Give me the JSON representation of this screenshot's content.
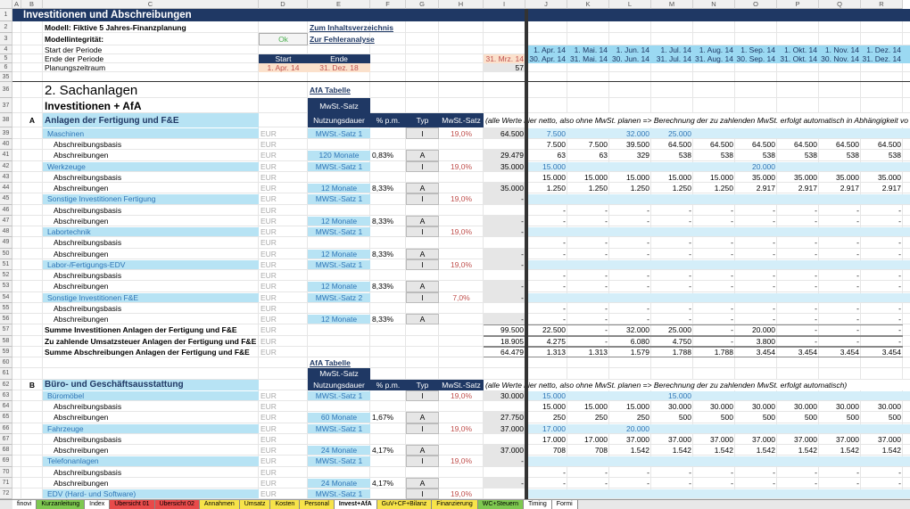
{
  "column_headers": [
    "A",
    "B",
    "C",
    "D",
    "E",
    "F",
    "G",
    "H",
    "I",
    "J",
    "K",
    "L",
    "M",
    "N",
    "O",
    "P",
    "Q",
    "R"
  ],
  "rows": [
    {
      "n": "1",
      "B": "Investitionen und Abschreibungen"
    },
    {
      "n": "2",
      "C": "Modell: Fiktive 5 Jahres-Finanzplanung",
      "E": "Zum Inhaltsverzeichnis"
    },
    {
      "n": "3",
      "C": "Modellintegrität:",
      "D": "Ok",
      "E": "Zur Fehleranalyse"
    },
    {
      "n": "4",
      "C": "Start der Periode",
      "J": "1. Apr. 14",
      "K": "1. Mai. 14",
      "L": "1. Jun. 14",
      "M": "1. Jul. 14",
      "N": "1. Aug. 14",
      "O": "1. Sep. 14",
      "P": "1. Okt. 14",
      "Q": "1. Nov. 14",
      "R": "1. Dez. 14"
    },
    {
      "n": "5",
      "C": "Ende der Periode",
      "D": "Start",
      "E": "Ende",
      "I": "31. Mrz. 14",
      "J": "30. Apr. 14",
      "K": "31. Mai. 14",
      "L": "30. Jun. 14",
      "M": "31. Jul. 14",
      "N": "31. Aug. 14",
      "O": "30. Sep. 14",
      "P": "31. Okt. 14",
      "Q": "30. Nov. 14",
      "R": "31. Dez. 14"
    },
    {
      "n": "6",
      "C": "Planungszeitraum",
      "D": "1. Apr. 14",
      "E": "31. Dez. 18",
      "I": "57"
    },
    {
      "n": "35"
    },
    {
      "n": "36",
      "C": "2. Sachanlagen",
      "E": "AfA Tabelle"
    },
    {
      "n": "37",
      "C": "Investitionen + AfA",
      "E": "MwSt.-Satz"
    },
    {
      "n": "38",
      "B": "A",
      "C": "Anlagen der Fertigung und F&E",
      "E": "Nutzungsdauer",
      "F": "% p.m.",
      "G": "Typ",
      "H": "MwSt.-Satz",
      "I": "(alle Werte hier netto, also ohne MwSt. planen => Berechnung der zu zahlenden MwSt. erfolgt automatisch in Abhängigkeit vo"
    },
    {
      "n": "39",
      "C": "Maschinen",
      "D": "EUR",
      "E": "MWSt.-Satz 1",
      "G": "I",
      "H": "19,0%",
      "I": "64.500",
      "J": "7.500",
      "L": "32.000",
      "M": "25.000"
    },
    {
      "n": "40",
      "C": "Abschreibungsbasis",
      "D": "EUR",
      "J": "7.500",
      "K": "7.500",
      "L": "39.500",
      "M": "64.500",
      "N": "64.500",
      "O": "64.500",
      "P": "64.500",
      "Q": "64.500",
      "R": "64.500"
    },
    {
      "n": "41",
      "C": "Abschreibungen",
      "D": "EUR",
      "E": "120 Monate",
      "F": "0,83%",
      "G": "A",
      "I": "29.479",
      "J": "63",
      "K": "63",
      "L": "329",
      "M": "538",
      "N": "538",
      "O": "538",
      "P": "538",
      "Q": "538",
      "R": "538"
    },
    {
      "n": "42",
      "C": "Werkzeuge",
      "D": "EUR",
      "E": "MWSt.-Satz 1",
      "G": "I",
      "H": "19,0%",
      "I": "35.000",
      "J": "15.000",
      "O": "20.000"
    },
    {
      "n": "43",
      "C": "Abschreibungsbasis",
      "D": "EUR",
      "J": "15.000",
      "K": "15.000",
      "L": "15.000",
      "M": "15.000",
      "N": "15.000",
      "O": "35.000",
      "P": "35.000",
      "Q": "35.000",
      "R": "35.000"
    },
    {
      "n": "44",
      "C": "Abschreibungen",
      "D": "EUR",
      "E": "12 Monate",
      "F": "8,33%",
      "G": "A",
      "I": "35.000",
      "J": "1.250",
      "K": "1.250",
      "L": "1.250",
      "M": "1.250",
      "N": "1.250",
      "O": "2.917",
      "P": "2.917",
      "Q": "2.917",
      "R": "2.917"
    },
    {
      "n": "45",
      "C": "Sonstige Investitionen Fertigung",
      "D": "EUR",
      "E": "MWSt.-Satz 1",
      "G": "I",
      "H": "19,0%",
      "I": "-"
    },
    {
      "n": "46",
      "C": "Abschreibungsbasis",
      "D": "EUR",
      "J": "-",
      "K": "-",
      "L": "-",
      "M": "-",
      "N": "-",
      "O": "-",
      "P": "-",
      "Q": "-",
      "R": "-"
    },
    {
      "n": "47",
      "C": "Abschreibungen",
      "D": "EUR",
      "E": "12 Monate",
      "F": "8,33%",
      "G": "A",
      "I": "-",
      "J": "-",
      "K": "-",
      "L": "-",
      "M": "-",
      "N": "-",
      "O": "-",
      "P": "-",
      "Q": "-",
      "R": "-"
    },
    {
      "n": "48",
      "C": "Labortechnik",
      "D": "EUR",
      "E": "MWSt.-Satz 1",
      "G": "I",
      "H": "19,0%",
      "I": "-"
    },
    {
      "n": "49",
      "C": "Abschreibungsbasis",
      "D": "EUR",
      "J": "-",
      "K": "-",
      "L": "-",
      "M": "-",
      "N": "-",
      "O": "-",
      "P": "-",
      "Q": "-",
      "R": "-"
    },
    {
      "n": "50",
      "C": "Abschreibungen",
      "D": "EUR",
      "E": "12 Monate",
      "F": "8,33%",
      "G": "A",
      "I": "-",
      "J": "-",
      "K": "-",
      "L": "-",
      "M": "-",
      "N": "-",
      "O": "-",
      "P": "-",
      "Q": "-",
      "R": "-"
    },
    {
      "n": "51",
      "C": "Labor-/Fertigungs-EDV",
      "D": "EUR",
      "E": "MWSt.-Satz 1",
      "G": "I",
      "H": "19,0%",
      "I": "-"
    },
    {
      "n": "52",
      "C": "Abschreibungsbasis",
      "D": "EUR",
      "J": "-",
      "K": "-",
      "L": "-",
      "M": "-",
      "N": "-",
      "O": "-",
      "P": "-",
      "Q": "-",
      "R": "-"
    },
    {
      "n": "53",
      "C": "Abschreibungen",
      "D": "EUR",
      "E": "12 Monate",
      "F": "8,33%",
      "G": "A",
      "I": "-",
      "J": "-",
      "K": "-",
      "L": "-",
      "M": "-",
      "N": "-",
      "O": "-",
      "P": "-",
      "Q": "-",
      "R": "-"
    },
    {
      "n": "54",
      "C": "Sonstige Investitionen F&E",
      "D": "EUR",
      "E": "MWSt.-Satz 2",
      "G": "I",
      "H": "7,0%",
      "I": "-"
    },
    {
      "n": "55",
      "C": "Abschreibungsbasis",
      "D": "EUR",
      "J": "-",
      "K": "-",
      "L": "-",
      "M": "-",
      "N": "-",
      "O": "-",
      "P": "-",
      "Q": "-",
      "R": "-"
    },
    {
      "n": "56",
      "C": "Abschreibungen",
      "D": "EUR",
      "E": "12 Monate",
      "F": "8,33%",
      "G": "A",
      "I": "-",
      "J": "-",
      "K": "-",
      "L": "-",
      "M": "-",
      "N": "-",
      "O": "-",
      "P": "-",
      "Q": "-",
      "R": "-"
    },
    {
      "n": "57",
      "C": "Summe Investitionen Anlagen der Fertigung und F&E",
      "D": "EUR",
      "I": "99.500",
      "J": "22.500",
      "K": "-",
      "L": "32.000",
      "M": "25.000",
      "N": "-",
      "O": "20.000",
      "P": "-",
      "Q": "-",
      "R": "-"
    },
    {
      "n": "58",
      "C": "Zu zahlende Umsatzsteuer Anlagen der Fertigung und F&E",
      "D": "EUR",
      "I": "18.905",
      "J": "4.275",
      "K": "-",
      "L": "6.080",
      "M": "4.750",
      "N": "-",
      "O": "3.800",
      "P": "-",
      "Q": "-",
      "R": "-"
    },
    {
      "n": "59",
      "C": "Summe Abschreibungen Anlagen der Fertigung und F&E",
      "D": "EUR",
      "I": "64.479",
      "J": "1.313",
      "K": "1.313",
      "L": "1.579",
      "M": "1.788",
      "N": "1.788",
      "O": "3.454",
      "P": "3.454",
      "Q": "3.454",
      "R": "3.454"
    },
    {
      "n": "60",
      "E": "AfA Tabelle"
    },
    {
      "n": "61",
      "E": "MwSt.-Satz"
    },
    {
      "n": "62",
      "B": "B",
      "C": "Büro- und Geschäftsausstattung",
      "E": "Nutzungsdauer",
      "F": "% p.m.",
      "G": "Typ",
      "H": "MwSt.-Satz",
      "I": "(alle Werte hier netto, also ohne MwSt. planen => Berechnung der zu zahlenden MwSt. erfolgt automatisch)"
    },
    {
      "n": "63",
      "C": "Büromöbel",
      "D": "EUR",
      "E": "MWSt.-Satz 1",
      "G": "I",
      "H": "19,0%",
      "I": "30.000",
      "J": "15.000",
      "M": "15.000"
    },
    {
      "n": "64",
      "C": "Abschreibungsbasis",
      "D": "EUR",
      "J": "15.000",
      "K": "15.000",
      "L": "15.000",
      "M": "30.000",
      "N": "30.000",
      "O": "30.000",
      "P": "30.000",
      "Q": "30.000",
      "R": "30.000"
    },
    {
      "n": "65",
      "C": "Abschreibungen",
      "D": "EUR",
      "E": "60 Monate",
      "F": "1,67%",
      "G": "A",
      "I": "27.750",
      "J": "250",
      "K": "250",
      "L": "250",
      "M": "500",
      "N": "500",
      "O": "500",
      "P": "500",
      "Q": "500",
      "R": "500"
    },
    {
      "n": "66",
      "C": "Fahrzeuge",
      "D": "EUR",
      "E": "MWSt.-Satz 1",
      "G": "I",
      "H": "19,0%",
      "I": "37.000",
      "J": "17.000",
      "L": "20.000"
    },
    {
      "n": "67",
      "C": "Abschreibungsbasis",
      "D": "EUR",
      "J": "17.000",
      "K": "17.000",
      "L": "37.000",
      "M": "37.000",
      "N": "37.000",
      "O": "37.000",
      "P": "37.000",
      "Q": "37.000",
      "R": "37.000"
    },
    {
      "n": "68",
      "C": "Abschreibungen",
      "D": "EUR",
      "E": "24 Monate",
      "F": "4,17%",
      "G": "A",
      "I": "37.000",
      "J": "708",
      "K": "708",
      "L": "1.542",
      "M": "1.542",
      "N": "1.542",
      "O": "1.542",
      "P": "1.542",
      "Q": "1.542",
      "R": "1.542"
    },
    {
      "n": "69",
      "C": "Telefonanlagen",
      "D": "EUR",
      "E": "MWSt.-Satz 1",
      "G": "I",
      "H": "19,0%",
      "I": "-"
    },
    {
      "n": "70",
      "C": "Abschreibungsbasis",
      "D": "EUR",
      "J": "-",
      "K": "-",
      "L": "-",
      "M": "-",
      "N": "-",
      "O": "-",
      "P": "-",
      "Q": "-",
      "R": "-"
    },
    {
      "n": "71",
      "C": "Abschreibungen",
      "D": "EUR",
      "E": "24 Monate",
      "F": "4,17%",
      "G": "A",
      "I": "-",
      "J": "-",
      "K": "-",
      "L": "-",
      "M": "-",
      "N": "-",
      "O": "-",
      "P": "-",
      "Q": "-",
      "R": "-"
    },
    {
      "n": "72",
      "C": "EDV (Hard- und Software)",
      "D": "EUR",
      "E": "MWSt.-Satz 1",
      "G": "I",
      "H": "19,0%"
    }
  ],
  "sheet_tabs": [
    "finovi",
    "Kurzanleitung",
    "Index",
    "Übersicht 01",
    "Übersicht 02",
    "Annahmen",
    "Umsatz",
    "Kosten",
    "Personal",
    "Invest+AfA",
    "GuV+CF+Bilanz",
    "Finanzierung",
    "WC+Steuern",
    "Timing",
    "Formi"
  ]
}
